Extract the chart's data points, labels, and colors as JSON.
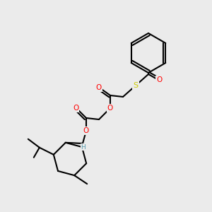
{
  "bg_color": "#ebebeb",
  "bond_color": "#000000",
  "bond_width": 1.5,
  "atom_colors": {
    "O": "#ff0000",
    "S": "#cccc00",
    "C": "#000000",
    "H": "#5599aa"
  },
  "font_size_atom": 7.5,
  "font_size_small": 6.5
}
